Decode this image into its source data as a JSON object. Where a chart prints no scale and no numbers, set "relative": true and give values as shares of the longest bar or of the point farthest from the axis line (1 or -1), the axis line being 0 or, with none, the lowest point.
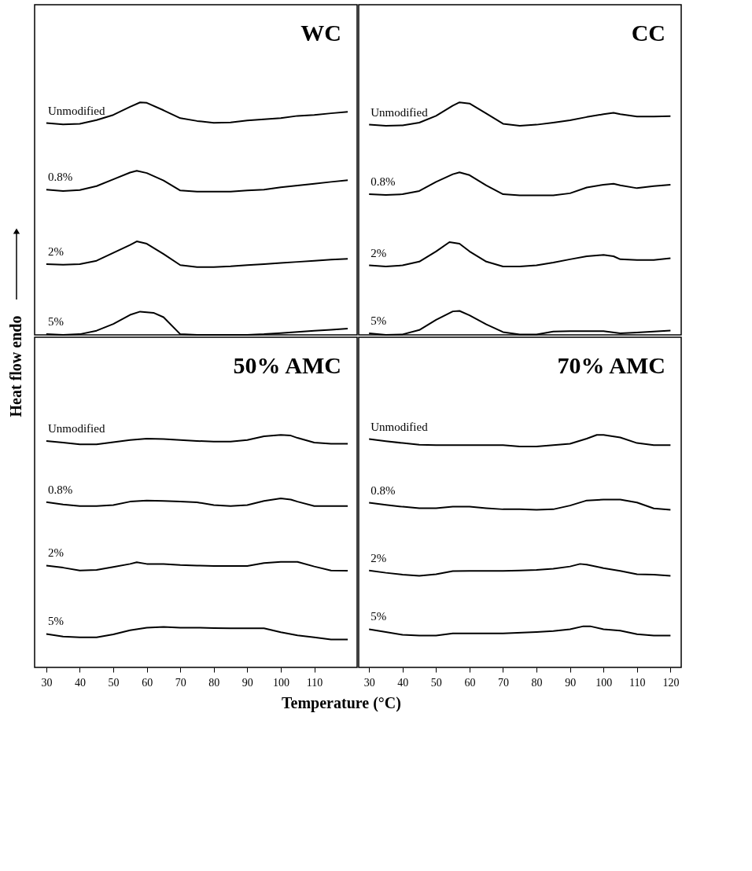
{
  "chart_data": [
    {
      "type": "line",
      "title": "WC",
      "relative": true,
      "xlim": [
        26.5,
        122.8
      ],
      "tick_labels": false,
      "grid": false,
      "marker": "none",
      "line_style": "solid",
      "series": [
        {
          "name": "Unmodified",
          "color": "#000000",
          "x": [
            30,
            35,
            40,
            45,
            50,
            55,
            58,
            60,
            65,
            70,
            75,
            80,
            85,
            90,
            95,
            100,
            105,
            110,
            115,
            120
          ],
          "values": [
            0.911,
            0.905,
            0.908,
            0.924,
            0.946,
            0.981,
            1.0,
            0.998,
            0.966,
            0.932,
            0.92,
            0.912,
            0.914,
            0.922,
            0.927,
            0.932,
            0.942,
            0.946,
            0.953,
            0.959
          ]
        },
        {
          "name": "0.8%",
          "color": "#000000",
          "x": [
            30,
            35,
            40,
            45,
            50,
            55,
            57,
            60,
            65,
            70,
            75,
            80,
            85,
            90,
            95,
            100,
            105,
            110,
            115,
            120
          ],
          "values": [
            0.625,
            0.619,
            0.623,
            0.64,
            0.669,
            0.698,
            0.706,
            0.696,
            0.664,
            0.621,
            0.616,
            0.616,
            0.616,
            0.621,
            0.625,
            0.635,
            0.642,
            0.65,
            0.658,
            0.665
          ]
        },
        {
          "name": "2%",
          "color": "#000000",
          "x": [
            30,
            35,
            40,
            45,
            50,
            55,
            57,
            60,
            65,
            70,
            75,
            80,
            85,
            90,
            95,
            100,
            105,
            110,
            115,
            120
          ],
          "values": [
            0.304,
            0.302,
            0.304,
            0.319,
            0.353,
            0.387,
            0.402,
            0.392,
            0.348,
            0.3,
            0.292,
            0.292,
            0.295,
            0.3,
            0.304,
            0.309,
            0.314,
            0.319,
            0.324,
            0.327
          ]
        },
        {
          "name": "5%",
          "color": "#000000",
          "x": [
            30,
            35,
            40,
            45,
            50,
            55,
            58,
            62,
            65,
            70,
            75,
            80,
            85,
            90,
            95,
            100,
            105,
            110,
            115,
            120
          ],
          "values": [
            0.003,
            0,
            0.003,
            0.018,
            0.047,
            0.086,
            0.1,
            0.095,
            0.076,
            0.003,
            0,
            0,
            0,
            0,
            0.003,
            0.008,
            0.013,
            0.018,
            0.022,
            0.027
          ]
        }
      ]
    },
    {
      "type": "line",
      "title": "CC",
      "relative": true,
      "xlim": [
        26.9,
        123.2
      ],
      "tick_labels": false,
      "grid": false,
      "marker": "none",
      "line_style": "solid",
      "series": [
        {
          "name": "Unmodified",
          "color": "#000000",
          "x": [
            30,
            35,
            40,
            45,
            50,
            55,
            57,
            60,
            65,
            70,
            75,
            80,
            85,
            90,
            95,
            100,
            103,
            105,
            110,
            115,
            120
          ],
          "values": [
            0.904,
            0.899,
            0.901,
            0.913,
            0.942,
            0.986,
            1.0,
            0.995,
            0.952,
            0.908,
            0.899,
            0.904,
            0.913,
            0.923,
            0.937,
            0.949,
            0.955,
            0.949,
            0.939,
            0.939,
            0.941
          ]
        },
        {
          "name": "0.8%",
          "color": "#000000",
          "x": [
            30,
            35,
            40,
            45,
            50,
            55,
            57,
            60,
            65,
            70,
            75,
            80,
            85,
            90,
            95,
            100,
            103,
            105,
            110,
            115,
            120
          ],
          "values": [
            0.605,
            0.602,
            0.605,
            0.619,
            0.658,
            0.691,
            0.699,
            0.687,
            0.643,
            0.605,
            0.6,
            0.6,
            0.6,
            0.609,
            0.634,
            0.646,
            0.65,
            0.643,
            0.631,
            0.64,
            0.646
          ]
        },
        {
          "name": "2%",
          "color": "#000000",
          "x": [
            30,
            35,
            40,
            45,
            50,
            54,
            57,
            60,
            65,
            70,
            75,
            80,
            85,
            90,
            95,
            100,
            103,
            105,
            110,
            115,
            120
          ],
          "values": [
            0.299,
            0.294,
            0.299,
            0.315,
            0.359,
            0.399,
            0.392,
            0.359,
            0.315,
            0.294,
            0.294,
            0.299,
            0.311,
            0.325,
            0.338,
            0.344,
            0.338,
            0.325,
            0.322,
            0.322,
            0.33
          ]
        },
        {
          "name": "5%",
          "color": "#000000",
          "x": [
            30,
            35,
            40,
            45,
            50,
            55,
            57,
            60,
            65,
            70,
            75,
            80,
            85,
            90,
            95,
            100,
            105,
            110,
            115,
            120
          ],
          "values": [
            0.007,
            0,
            0.002,
            0.021,
            0.065,
            0.101,
            0.103,
            0.084,
            0.045,
            0.012,
            0.002,
            0.002,
            0.014,
            0.016,
            0.016,
            0.016,
            0.007,
            0.01,
            0.014,
            0.019
          ]
        }
      ]
    },
    {
      "type": "line",
      "title": "50% AMC",
      "relative": true,
      "xlabel": "Temperature (°C)",
      "ylabel": "Heat flow endo",
      "xlim": [
        26.5,
        122.8
      ],
      "xticks": [
        30,
        40,
        50,
        60,
        70,
        80,
        90,
        100,
        110
      ],
      "tick_labels": "x",
      "grid": false,
      "marker": "none",
      "line_style": "solid",
      "series": [
        {
          "name": "Unmodified",
          "color": "#000000",
          "x": [
            30,
            35,
            40,
            45,
            50,
            55,
            60,
            65,
            70,
            75,
            80,
            85,
            90,
            95,
            100,
            103,
            105,
            110,
            115,
            120
          ],
          "values": [
            0.974,
            0.967,
            0.959,
            0.959,
            0.969,
            0.978,
            0.984,
            0.982,
            0.978,
            0.974,
            0.971,
            0.971,
            0.978,
            0.994,
            1.0,
            0.997,
            0.987,
            0.967,
            0.962,
            0.962
          ]
        },
        {
          "name": "0.8%",
          "color": "#000000",
          "x": [
            30,
            35,
            40,
            45,
            50,
            55,
            60,
            65,
            70,
            75,
            80,
            85,
            90,
            95,
            100,
            103,
            105,
            110,
            115,
            120
          ],
          "values": [
            0.711,
            0.701,
            0.694,
            0.694,
            0.698,
            0.713,
            0.718,
            0.716,
            0.713,
            0.71,
            0.698,
            0.694,
            0.698,
            0.716,
            0.727,
            0.722,
            0.713,
            0.694,
            0.694,
            0.694
          ]
        },
        {
          "name": "2%",
          "color": "#000000",
          "x": [
            30,
            35,
            40,
            45,
            50,
            55,
            57,
            60,
            65,
            70,
            75,
            80,
            85,
            90,
            95,
            100,
            105,
            110,
            115,
            120
          ],
          "values": [
            0.438,
            0.429,
            0.417,
            0.419,
            0.432,
            0.445,
            0.452,
            0.445,
            0.445,
            0.44,
            0.438,
            0.436,
            0.436,
            0.436,
            0.449,
            0.454,
            0.454,
            0.434,
            0.417,
            0.416
          ]
        },
        {
          "name": "5%",
          "color": "#000000",
          "x": [
            30,
            35,
            40,
            45,
            50,
            55,
            60,
            65,
            70,
            75,
            80,
            85,
            90,
            95,
            100,
            105,
            110,
            115,
            120
          ],
          "values": [
            0.144,
            0.133,
            0.129,
            0.129,
            0.142,
            0.16,
            0.171,
            0.174,
            0.171,
            0.171,
            0.169,
            0.168,
            0.168,
            0.168,
            0.151,
            0.138,
            0.129,
            0.12,
            0.12
          ]
        }
      ]
    },
    {
      "type": "line",
      "title": "70% AMC",
      "relative": true,
      "xlim": [
        26.9,
        123.2
      ],
      "xticks": [
        30,
        40,
        50,
        60,
        70,
        80,
        90,
        100,
        110,
        120
      ],
      "tick_labels": "x",
      "grid": false,
      "marker": "none",
      "line_style": "solid",
      "series": [
        {
          "name": "Unmodified",
          "color": "#000000",
          "x": [
            30,
            35,
            40,
            45,
            50,
            60,
            70,
            75,
            80,
            85,
            90,
            95,
            98,
            100,
            105,
            110,
            115,
            120
          ],
          "values": [
            0.982,
            0.973,
            0.965,
            0.958,
            0.956,
            0.956,
            0.956,
            0.95,
            0.95,
            0.956,
            0.962,
            0.984,
            1.0,
            1.0,
            0.989,
            0.965,
            0.956,
            0.956
          ]
        },
        {
          "name": "0.8%",
          "color": "#000000",
          "x": [
            30,
            35,
            40,
            45,
            50,
            55,
            60,
            65,
            70,
            75,
            80,
            85,
            90,
            95,
            100,
            105,
            110,
            115,
            120
          ],
          "values": [
            0.708,
            0.699,
            0.691,
            0.685,
            0.685,
            0.691,
            0.691,
            0.685,
            0.68,
            0.68,
            0.678,
            0.68,
            0.696,
            0.718,
            0.722,
            0.722,
            0.709,
            0.684,
            0.678
          ]
        },
        {
          "name": "2%",
          "color": "#000000",
          "x": [
            30,
            35,
            40,
            45,
            50,
            55,
            60,
            65,
            70,
            75,
            80,
            85,
            90,
            93,
            95,
            100,
            105,
            110,
            115,
            120
          ],
          "values": [
            0.417,
            0.407,
            0.399,
            0.394,
            0.401,
            0.414,
            0.415,
            0.415,
            0.415,
            0.417,
            0.419,
            0.424,
            0.434,
            0.445,
            0.442,
            0.427,
            0.415,
            0.401,
            0.399,
            0.394
          ]
        },
        {
          "name": "5%",
          "color": "#000000",
          "x": [
            30,
            35,
            40,
            45,
            50,
            55,
            60,
            70,
            80,
            85,
            90,
            94,
            96,
            100,
            105,
            110,
            115,
            120
          ],
          "values": [
            0.164,
            0.152,
            0.14,
            0.137,
            0.137,
            0.146,
            0.146,
            0.146,
            0.152,
            0.156,
            0.164,
            0.177,
            0.177,
            0.164,
            0.158,
            0.143,
            0.137,
            0.137
          ]
        }
      ]
    }
  ]
}
